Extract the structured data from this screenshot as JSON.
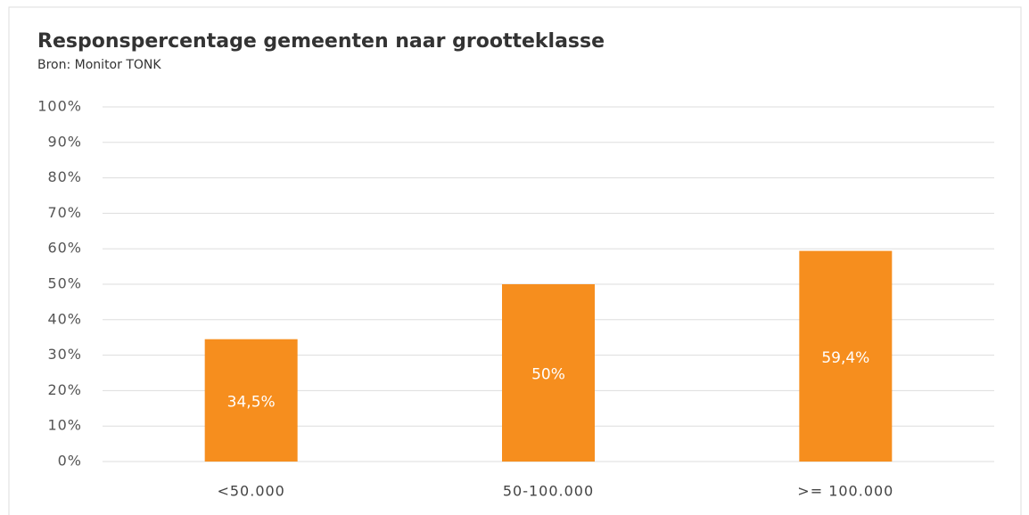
{
  "chart_data": {
    "type": "bar",
    "title": "Responspercentage gemeenten naar grootteklasse",
    "subtitle": "Bron: Monitor TONK",
    "categories": [
      "<50.000",
      "50-100.000",
      ">= 100.000"
    ],
    "values": [
      34.5,
      50,
      59.4
    ],
    "value_labels": [
      "34,5%",
      "50%",
      "59,4%"
    ],
    "color": "#f68e1e",
    "ylim": [
      0,
      100
    ],
    "yticks": [
      {
        "value": 0,
        "label": "0%"
      },
      {
        "value": 10,
        "label": "10%"
      },
      {
        "value": 20,
        "label": "20%"
      },
      {
        "value": 30,
        "label": "30%"
      },
      {
        "value": 40,
        "label": "40%"
      },
      {
        "value": 50,
        "label": "50%"
      },
      {
        "value": 60,
        "label": "60%"
      },
      {
        "value": 70,
        "label": "70%"
      },
      {
        "value": 80,
        "label": "80%"
      },
      {
        "value": 90,
        "label": "90%"
      },
      {
        "value": 100,
        "label": "100%"
      }
    ],
    "grid": true
  }
}
